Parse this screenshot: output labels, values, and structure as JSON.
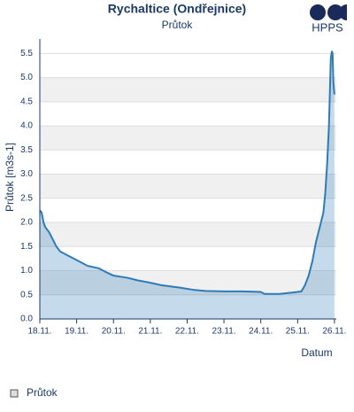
{
  "chart_data": {
    "type": "area",
    "title": "Rychaltice (Ondřejnice)",
    "subtitle": "Průtok",
    "brand": "HPPS",
    "y_label": "Průtok [m3s-1]",
    "x_label": "Datum",
    "x": [
      18.0,
      18.05,
      18.1,
      18.15,
      18.25,
      18.35,
      18.45,
      18.55,
      18.8,
      19.05,
      19.3,
      19.6,
      19.85,
      20.0,
      20.4,
      20.65,
      21.0,
      21.3,
      21.8,
      22.2,
      22.5,
      23.0,
      23.5,
      24.0,
      24.1,
      24.5,
      24.9,
      25.1,
      25.2,
      25.3,
      25.4,
      25.5,
      25.6,
      25.7,
      25.75,
      25.8,
      25.85,
      25.88,
      25.9,
      25.93,
      25.95,
      25.97,
      26.0
    ],
    "series": [
      {
        "name": "Průtok",
        "color": "#2f7bb8",
        "values": [
          2.25,
          2.2,
          2.0,
          1.9,
          1.8,
          1.65,
          1.5,
          1.4,
          1.3,
          1.2,
          1.1,
          1.05,
          0.95,
          0.9,
          0.85,
          0.8,
          0.75,
          0.7,
          0.65,
          0.6,
          0.58,
          0.57,
          0.57,
          0.56,
          0.52,
          0.52,
          0.55,
          0.57,
          0.7,
          0.9,
          1.2,
          1.6,
          1.9,
          2.2,
          2.6,
          3.2,
          4.0,
          4.8,
          5.4,
          5.55,
          5.5,
          4.9,
          4.65
        ]
      }
    ],
    "xlim": [
      18,
      26.05
    ],
    "ylim": [
      0,
      5.8
    ],
    "xticks": [
      {
        "value": 18,
        "label": "18.11."
      },
      {
        "value": 19,
        "label": "19.11."
      },
      {
        "value": 20,
        "label": "20.11."
      },
      {
        "value": 21,
        "label": "21.11."
      },
      {
        "value": 22,
        "label": "22.11."
      },
      {
        "value": 23,
        "label": "23.11."
      },
      {
        "value": 24,
        "label": "24.11."
      },
      {
        "value": 25,
        "label": "25.11."
      },
      {
        "value": 26,
        "label": "26.11."
      }
    ],
    "yticks": [
      {
        "value": 0,
        "label": "0.0"
      },
      0.5,
      {
        "value": 1,
        "label": "1.0"
      },
      1.5,
      {
        "value": 2,
        "label": "2.0"
      },
      2.5,
      {
        "value": 3,
        "label": "3.0"
      },
      3.5,
      {
        "value": 4,
        "label": "4.0"
      },
      4.5,
      {
        "value": 5,
        "label": "5.0"
      },
      5.5
    ],
    "grid": true
  }
}
